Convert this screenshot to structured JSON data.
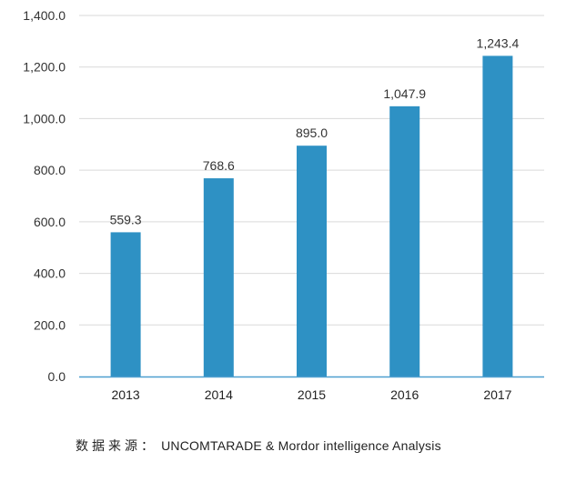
{
  "chart_data": {
    "type": "bar",
    "categories": [
      "2013",
      "2014",
      "2015",
      "2016",
      "2017"
    ],
    "values": [
      559.3,
      768.6,
      895.0,
      1047.9,
      1243.4
    ],
    "data_labels": [
      "559.3",
      "768.6",
      "895.0",
      "1,047.9",
      "1,243.4"
    ],
    "y_ticks": [
      0,
      200,
      400,
      600,
      800,
      1000,
      1200,
      1400
    ],
    "y_tick_labels": [
      "0.0",
      "200.0",
      "400.0",
      "600.0",
      "800.0",
      "1,000.0",
      "1,200.0",
      "1,400.0"
    ],
    "ylim": [
      0,
      1400
    ],
    "grid": true,
    "legend": "none",
    "colors": {
      "bar": "#2e91c4",
      "grid": "#d9d9d9",
      "axis": "#4e9fcf",
      "text": "#333333"
    }
  },
  "source": {
    "prefix": "数据来源：",
    "text": "UNCOMTARADE & Mordor intelligence Analysis"
  }
}
